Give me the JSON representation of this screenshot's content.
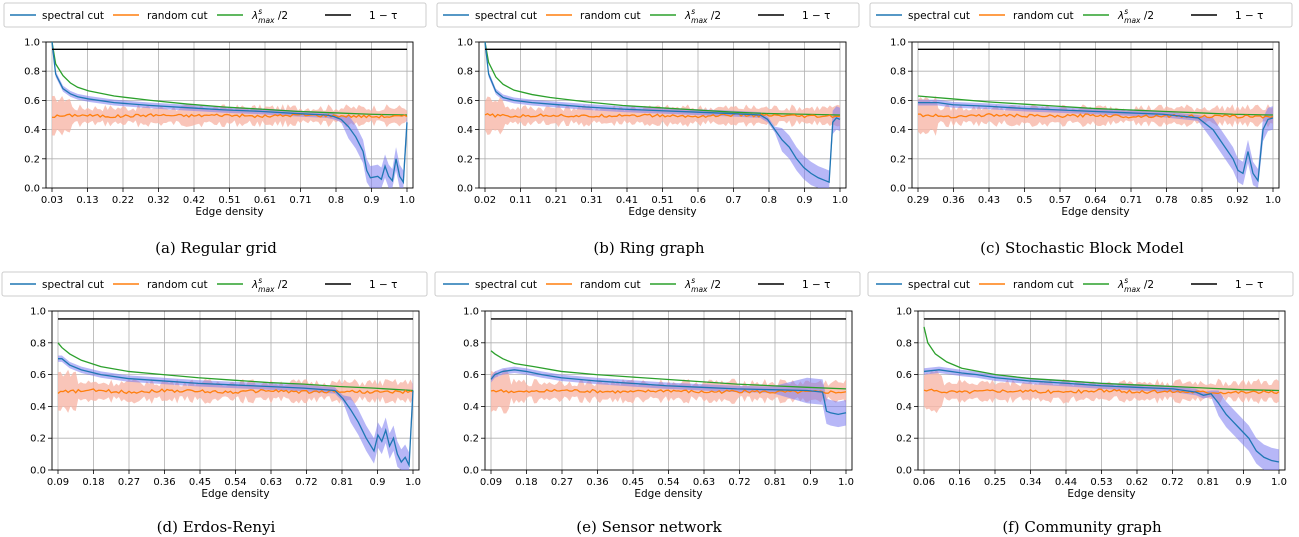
{
  "legend": {
    "spectral": "spectral cut",
    "random": "random cut",
    "lambda_main": "λ",
    "lambda_sup": "s",
    "lambda_sub": "max",
    "lambda_tail": " /2",
    "tau": "1 − τ"
  },
  "colors": {
    "spectral": "#1f77b4",
    "random": "#ff7f0e",
    "lambda": "#2ca02c",
    "tau": "#000000",
    "spectral_band": "#7b7bf0",
    "random_band": "#f7b7a8"
  },
  "chart_data": [
    {
      "type": "line",
      "caption": "(a)  Regular grid",
      "xlabel": "Edge density",
      "xlim": [
        0.03,
        1.0
      ],
      "ylim": [
        0,
        1.0
      ],
      "yticks": [
        "0.0",
        "0.2",
        "0.4",
        "0.6",
        "0.8",
        "1.0"
      ],
      "xticks": [
        "0.03",
        "0.13",
        "0.22",
        "0.32",
        "0.42",
        "0.51",
        "0.61",
        "0.71",
        "0.8",
        "0.9",
        "1.0"
      ],
      "series": [
        {
          "key": "lambda",
          "x": [
            0.03,
            0.04,
            0.06,
            0.08,
            0.1,
            0.13,
            0.2,
            0.3,
            0.4,
            0.5,
            0.6,
            0.7,
            0.8,
            0.9,
            1.0
          ],
          "y": [
            1.0,
            0.85,
            0.77,
            0.72,
            0.69,
            0.665,
            0.63,
            0.6,
            0.575,
            0.555,
            0.54,
            0.525,
            0.515,
            0.505,
            0.5
          ]
        },
        {
          "key": "spectral",
          "x": [
            0.03,
            0.04,
            0.06,
            0.08,
            0.1,
            0.13,
            0.2,
            0.3,
            0.4,
            0.5,
            0.6,
            0.7,
            0.78,
            0.8,
            0.82,
            0.84,
            0.86,
            0.87,
            0.88,
            0.89,
            0.9,
            0.92,
            0.93,
            0.94,
            0.95,
            0.96,
            0.97,
            0.98,
            0.99,
            1.0
          ],
          "y": [
            1.0,
            0.78,
            0.68,
            0.645,
            0.625,
            0.61,
            0.585,
            0.565,
            0.55,
            0.535,
            0.525,
            0.51,
            0.5,
            0.49,
            0.47,
            0.42,
            0.35,
            0.3,
            0.25,
            0.12,
            0.07,
            0.08,
            0.06,
            0.15,
            0.08,
            0.05,
            0.2,
            0.08,
            0.04,
            0.45
          ]
        },
        {
          "key": "random",
          "x": [
            0.03,
            0.1,
            0.2,
            0.3,
            0.4,
            0.5,
            0.6,
            0.7,
            0.8,
            0.9,
            1.0
          ],
          "y": [
            0.49,
            0.5,
            0.49,
            0.5,
            0.495,
            0.5,
            0.49,
            0.5,
            0.495,
            0.49,
            0.49
          ]
        },
        {
          "key": "tau",
          "x": [
            0.03,
            1.0
          ],
          "y": [
            0.95,
            0.95
          ]
        }
      ]
    },
    {
      "type": "line",
      "caption": "(b)  Ring graph",
      "xlabel": "Edge density",
      "xlim": [
        0.02,
        1.0
      ],
      "ylim": [
        0,
        1.0
      ],
      "yticks": [
        "0.0",
        "0.2",
        "0.4",
        "0.6",
        "0.8",
        "1.0"
      ],
      "xticks": [
        "0.02",
        "0.11",
        "0.21",
        "0.31",
        "0.41",
        "0.51",
        "0.6",
        "0.7",
        "0.8",
        "0.9",
        "1.0"
      ],
      "series": [
        {
          "key": "lambda",
          "x": [
            0.02,
            0.03,
            0.05,
            0.07,
            0.1,
            0.15,
            0.2,
            0.3,
            0.4,
            0.5,
            0.6,
            0.7,
            0.8,
            0.9,
            1.0
          ],
          "y": [
            1.0,
            0.86,
            0.76,
            0.71,
            0.67,
            0.64,
            0.62,
            0.59,
            0.565,
            0.55,
            0.535,
            0.52,
            0.51,
            0.505,
            0.5
          ]
        },
        {
          "key": "spectral",
          "x": [
            0.02,
            0.03,
            0.05,
            0.07,
            0.1,
            0.15,
            0.2,
            0.3,
            0.4,
            0.5,
            0.6,
            0.7,
            0.78,
            0.8,
            0.82,
            0.84,
            0.86,
            0.88,
            0.9,
            0.92,
            0.94,
            0.96,
            0.97,
            0.98,
            0.99,
            1.0
          ],
          "y": [
            1.0,
            0.78,
            0.66,
            0.62,
            0.6,
            0.585,
            0.575,
            0.555,
            0.54,
            0.53,
            0.52,
            0.51,
            0.5,
            0.47,
            0.4,
            0.33,
            0.28,
            0.2,
            0.14,
            0.1,
            0.07,
            0.05,
            0.04,
            0.45,
            0.48,
            0.47
          ]
        },
        {
          "key": "random",
          "x": [
            0.02,
            0.1,
            0.2,
            0.3,
            0.4,
            0.5,
            0.6,
            0.7,
            0.8,
            0.9,
            1.0
          ],
          "y": [
            0.5,
            0.49,
            0.5,
            0.49,
            0.5,
            0.495,
            0.49,
            0.5,
            0.495,
            0.49,
            0.49
          ]
        },
        {
          "key": "tau",
          "x": [
            0.02,
            1.0
          ],
          "y": [
            0.95,
            0.95
          ]
        }
      ]
    },
    {
      "type": "line",
      "caption": "(c)  Stochastic Block Model",
      "xlabel": "Edge density",
      "xlim": [
        0.29,
        1.0
      ],
      "ylim": [
        0,
        1.0
      ],
      "yticks": [
        "0.0",
        "0.2",
        "0.4",
        "0.6",
        "0.8",
        "1.0"
      ],
      "xticks": [
        "0.29",
        "0.36",
        "0.43",
        "0.5",
        "0.57",
        "0.64",
        "0.71",
        "0.78",
        "0.85",
        "0.92",
        "1.0"
      ],
      "series": [
        {
          "key": "lambda",
          "x": [
            0.29,
            0.36,
            0.43,
            0.5,
            0.57,
            0.64,
            0.71,
            0.78,
            0.85,
            0.92,
            1.0
          ],
          "y": [
            0.63,
            0.61,
            0.59,
            0.575,
            0.56,
            0.545,
            0.535,
            0.525,
            0.515,
            0.505,
            0.5
          ]
        },
        {
          "key": "spectral",
          "x": [
            0.29,
            0.33,
            0.36,
            0.43,
            0.5,
            0.57,
            0.64,
            0.71,
            0.78,
            0.85,
            0.88,
            0.9,
            0.92,
            0.93,
            0.94,
            0.95,
            0.96,
            0.97,
            0.98,
            0.99,
            1.0
          ],
          "y": [
            0.585,
            0.585,
            0.57,
            0.56,
            0.545,
            0.535,
            0.525,
            0.515,
            0.505,
            0.48,
            0.4,
            0.3,
            0.2,
            0.12,
            0.1,
            0.25,
            0.1,
            0.05,
            0.4,
            0.47,
            0.48
          ]
        },
        {
          "key": "random",
          "x": [
            0.29,
            0.36,
            0.43,
            0.5,
            0.57,
            0.64,
            0.71,
            0.78,
            0.85,
            0.92,
            1.0
          ],
          "y": [
            0.5,
            0.49,
            0.5,
            0.495,
            0.49,
            0.5,
            0.49,
            0.495,
            0.49,
            0.49,
            0.49
          ]
        },
        {
          "key": "tau",
          "x": [
            0.29,
            1.0
          ],
          "y": [
            0.95,
            0.95
          ]
        }
      ]
    },
    {
      "type": "line",
      "caption": "(d)  Erdos-Renyi",
      "xlabel": "Edge density",
      "xlim": [
        0.09,
        1.0
      ],
      "ylim": [
        0,
        1.0
      ],
      "yticks": [
        "0.0",
        "0.2",
        "0.4",
        "0.6",
        "0.8",
        "1.0"
      ],
      "xticks": [
        "0.09",
        "0.18",
        "0.27",
        "0.36",
        "0.45",
        "0.54",
        "0.63",
        "0.72",
        "0.81",
        "0.9",
        "1.0"
      ],
      "series": [
        {
          "key": "lambda",
          "x": [
            0.09,
            0.1,
            0.12,
            0.15,
            0.2,
            0.27,
            0.36,
            0.45,
            0.54,
            0.63,
            0.72,
            0.81,
            0.9,
            1.0
          ],
          "y": [
            0.8,
            0.77,
            0.73,
            0.69,
            0.65,
            0.62,
            0.6,
            0.58,
            0.565,
            0.55,
            0.54,
            0.525,
            0.515,
            0.5
          ]
        },
        {
          "key": "spectral",
          "x": [
            0.09,
            0.1,
            0.12,
            0.15,
            0.2,
            0.27,
            0.36,
            0.45,
            0.54,
            0.63,
            0.72,
            0.8,
            0.82,
            0.84,
            0.86,
            0.88,
            0.9,
            0.91,
            0.92,
            0.93,
            0.94,
            0.95,
            0.96,
            0.97,
            0.98,
            0.99,
            1.0
          ],
          "y": [
            0.7,
            0.7,
            0.66,
            0.63,
            0.6,
            0.575,
            0.56,
            0.545,
            0.535,
            0.525,
            0.515,
            0.5,
            0.45,
            0.38,
            0.3,
            0.2,
            0.12,
            0.22,
            0.18,
            0.25,
            0.15,
            0.2,
            0.1,
            0.05,
            0.08,
            0.03,
            0.5
          ]
        },
        {
          "key": "random",
          "x": [
            0.09,
            0.18,
            0.27,
            0.36,
            0.45,
            0.54,
            0.63,
            0.72,
            0.81,
            0.9,
            1.0
          ],
          "y": [
            0.49,
            0.5,
            0.49,
            0.5,
            0.495,
            0.49,
            0.5,
            0.49,
            0.495,
            0.49,
            0.49
          ]
        },
        {
          "key": "tau",
          "x": [
            0.09,
            1.0
          ],
          "y": [
            0.95,
            0.95
          ]
        }
      ]
    },
    {
      "type": "line",
      "caption": "(e)  Sensor network",
      "xlabel": "Edge density",
      "xlim": [
        0.09,
        1.0
      ],
      "ylim": [
        0,
        1.0
      ],
      "yticks": [
        "0.0",
        "0.2",
        "0.4",
        "0.6",
        "0.8",
        "1.0"
      ],
      "xticks": [
        "0.09",
        "0.18",
        "0.27",
        "0.36",
        "0.45",
        "0.54",
        "0.63",
        "0.72",
        "0.81",
        "0.9",
        "1.0"
      ],
      "series": [
        {
          "key": "lambda",
          "x": [
            0.09,
            0.1,
            0.12,
            0.15,
            0.2,
            0.27,
            0.36,
            0.45,
            0.54,
            0.63,
            0.72,
            0.81,
            0.9,
            1.0
          ],
          "y": [
            0.75,
            0.73,
            0.7,
            0.67,
            0.65,
            0.62,
            0.6,
            0.585,
            0.57,
            0.555,
            0.54,
            0.53,
            0.52,
            0.51
          ]
        },
        {
          "key": "spectral",
          "x": [
            0.09,
            0.1,
            0.12,
            0.15,
            0.18,
            0.22,
            0.27,
            0.36,
            0.45,
            0.54,
            0.63,
            0.72,
            0.81,
            0.9,
            0.94,
            0.95,
            0.96,
            0.98,
            1.0
          ],
          "y": [
            0.57,
            0.6,
            0.62,
            0.63,
            0.62,
            0.6,
            0.58,
            0.56,
            0.545,
            0.53,
            0.52,
            0.51,
            0.505,
            0.5,
            0.49,
            0.37,
            0.36,
            0.35,
            0.36
          ]
        },
        {
          "key": "random",
          "x": [
            0.09,
            0.18,
            0.27,
            0.36,
            0.45,
            0.54,
            0.63,
            0.72,
            0.81,
            0.9,
            1.0
          ],
          "y": [
            0.5,
            0.49,
            0.5,
            0.495,
            0.49,
            0.5,
            0.49,
            0.495,
            0.49,
            0.49,
            0.49
          ]
        },
        {
          "key": "tau",
          "x": [
            0.09,
            1.0
          ],
          "y": [
            0.95,
            0.95
          ]
        }
      ]
    },
    {
      "type": "line",
      "caption": "(f)  Community graph",
      "xlabel": "Edge density",
      "xlim": [
        0.06,
        1.0
      ],
      "ylim": [
        0,
        1.0
      ],
      "yticks": [
        "0.0",
        "0.2",
        "0.4",
        "0.6",
        "0.8",
        "1.0"
      ],
      "xticks": [
        "0.06",
        "0.16",
        "0.25",
        "0.34",
        "0.44",
        "0.53",
        "0.62",
        "0.72",
        "0.81",
        "0.9",
        "1.0"
      ],
      "series": [
        {
          "key": "lambda",
          "x": [
            0.06,
            0.07,
            0.09,
            0.12,
            0.16,
            0.25,
            0.34,
            0.44,
            0.53,
            0.62,
            0.72,
            0.81,
            0.9,
            1.0
          ],
          "y": [
            0.9,
            0.8,
            0.73,
            0.68,
            0.64,
            0.6,
            0.575,
            0.56,
            0.545,
            0.535,
            0.525,
            0.515,
            0.505,
            0.5
          ]
        },
        {
          "key": "spectral",
          "x": [
            0.06,
            0.1,
            0.16,
            0.2,
            0.25,
            0.34,
            0.44,
            0.53,
            0.62,
            0.72,
            0.78,
            0.8,
            0.82,
            0.84,
            0.86,
            0.88,
            0.9,
            0.92,
            0.94,
            0.96,
            0.98,
            1.0
          ],
          "y": [
            0.62,
            0.63,
            0.61,
            0.6,
            0.58,
            0.56,
            0.545,
            0.53,
            0.52,
            0.51,
            0.49,
            0.47,
            0.48,
            0.42,
            0.35,
            0.3,
            0.25,
            0.2,
            0.12,
            0.08,
            0.06,
            0.05
          ]
        },
        {
          "key": "random",
          "x": [
            0.06,
            0.16,
            0.25,
            0.34,
            0.44,
            0.53,
            0.62,
            0.72,
            0.81,
            0.9,
            1.0
          ],
          "y": [
            0.5,
            0.49,
            0.5,
            0.495,
            0.49,
            0.5,
            0.49,
            0.495,
            0.49,
            0.49,
            0.49
          ]
        },
        {
          "key": "tau",
          "x": [
            0.06,
            1.0
          ],
          "y": [
            0.95,
            0.95
          ]
        }
      ]
    }
  ]
}
